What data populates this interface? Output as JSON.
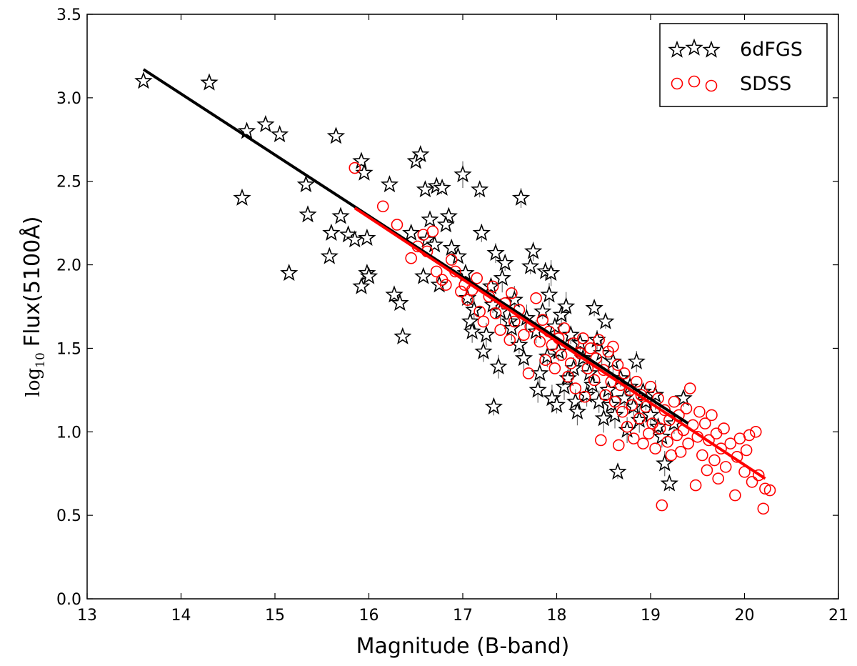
{
  "chart_data": {
    "type": "scatter",
    "title": "",
    "xlabel": "Magnitude (B-band)",
    "ylabel": "Flux(5100Å)",
    "ylabel_prefix": "log",
    "ylabel_subscript": "10",
    "xlim": [
      13,
      21
    ],
    "ylim": [
      0.0,
      3.5
    ],
    "xticks": [
      13,
      14,
      15,
      16,
      17,
      18,
      19,
      20,
      21
    ],
    "xtick_labels": [
      "13",
      "14",
      "15",
      "16",
      "17",
      "18",
      "19",
      "20",
      "21"
    ],
    "yticks": [
      0.0,
      0.5,
      1.0,
      1.5,
      2.0,
      2.5,
      3.0,
      3.5
    ],
    "ytick_labels": [
      "0.0",
      "0.5",
      "1.0",
      "1.5",
      "2.0",
      "2.5",
      "3.0",
      "3.5"
    ],
    "grid": false,
    "legend_position": "top-right",
    "series": [
      {
        "name": "6dFGS",
        "marker": "star",
        "color": "#000000",
        "points": [
          [
            13.6,
            3.1
          ],
          [
            14.3,
            3.09
          ],
          [
            14.7,
            2.8
          ],
          [
            14.9,
            2.84
          ],
          [
            15.05,
            2.78
          ],
          [
            14.65,
            2.4
          ],
          [
            15.15,
            1.95
          ],
          [
            15.35,
            2.3
          ],
          [
            15.33,
            2.48
          ],
          [
            15.58,
            2.05
          ],
          [
            15.6,
            2.19
          ],
          [
            15.65,
            2.77
          ],
          [
            15.7,
            2.29
          ],
          [
            15.78,
            2.18
          ],
          [
            15.85,
            2.15
          ],
          [
            15.92,
            2.62
          ],
          [
            15.92,
            1.87
          ],
          [
            15.95,
            2.55
          ],
          [
            15.98,
            1.95
          ],
          [
            15.98,
            2.16
          ],
          [
            16.0,
            1.93
          ],
          [
            16.22,
            2.48
          ],
          [
            16.27,
            1.82
          ],
          [
            16.33,
            1.77
          ],
          [
            16.36,
            1.57
          ],
          [
            16.45,
            2.19
          ],
          [
            16.5,
            2.62
          ],
          [
            16.55,
            2.66
          ],
          [
            16.6,
            2.45
          ],
          [
            16.62,
            2.15
          ],
          [
            16.58,
            1.93
          ],
          [
            16.65,
            2.27
          ],
          [
            16.72,
            2.47
          ],
          [
            16.78,
            2.46
          ],
          [
            16.7,
            2.12
          ],
          [
            16.75,
            1.88
          ],
          [
            16.85,
            2.29
          ],
          [
            16.88,
            2.1
          ],
          [
            16.82,
            2.24
          ],
          [
            16.95,
            2.05
          ],
          [
            17.0,
            2.54
          ],
          [
            17.03,
            1.95
          ],
          [
            17.05,
            1.8
          ],
          [
            17.08,
            1.66
          ],
          [
            17.1,
            1.6
          ],
          [
            17.12,
            1.73
          ],
          [
            17.18,
            2.45
          ],
          [
            17.2,
            2.19
          ],
          [
            17.22,
            1.48
          ],
          [
            17.25,
            1.58
          ],
          [
            17.3,
            1.87
          ],
          [
            17.32,
            1.76
          ],
          [
            17.33,
            1.15
          ],
          [
            17.35,
            2.07
          ],
          [
            17.38,
            1.39
          ],
          [
            17.4,
            1.72
          ],
          [
            17.42,
            1.92
          ],
          [
            17.45,
            2.01
          ],
          [
            17.5,
            1.66
          ],
          [
            17.52,
            1.62
          ],
          [
            17.55,
            1.79
          ],
          [
            17.6,
            1.52
          ],
          [
            17.62,
            2.4
          ],
          [
            17.65,
            1.44
          ],
          [
            17.68,
            1.68
          ],
          [
            17.72,
            1.99
          ],
          [
            17.75,
            2.08
          ],
          [
            17.78,
            1.6
          ],
          [
            17.8,
            1.25
          ],
          [
            17.82,
            1.35
          ],
          [
            17.85,
            1.72
          ],
          [
            17.88,
            1.96
          ],
          [
            17.9,
            1.45
          ],
          [
            17.92,
            1.82
          ],
          [
            17.94,
            1.95
          ],
          [
            17.95,
            1.2
          ],
          [
            17.98,
            1.63
          ],
          [
            18.0,
            1.16
          ],
          [
            18.02,
            1.48
          ],
          [
            18.05,
            1.7
          ],
          [
            18.08,
            1.27
          ],
          [
            18.1,
            1.75
          ],
          [
            18.12,
            1.32
          ],
          [
            18.15,
            1.58
          ],
          [
            18.18,
            1.38
          ],
          [
            18.2,
            1.18
          ],
          [
            18.22,
            1.12
          ],
          [
            18.25,
            1.53
          ],
          [
            18.28,
            1.44
          ],
          [
            18.32,
            1.22
          ],
          [
            18.35,
            1.35
          ],
          [
            18.38,
            1.28
          ],
          [
            18.4,
            1.74
          ],
          [
            18.43,
            1.55
          ],
          [
            18.45,
            1.18
          ],
          [
            18.48,
            1.47
          ],
          [
            18.5,
            1.08
          ],
          [
            18.52,
            1.66
          ],
          [
            18.55,
            1.25
          ],
          [
            18.58,
            1.16
          ],
          [
            18.6,
            1.42
          ],
          [
            18.62,
            1.1
          ],
          [
            18.65,
            0.76
          ],
          [
            18.68,
            1.32
          ],
          [
            18.72,
            1.2
          ],
          [
            18.75,
            1.01
          ],
          [
            18.78,
            1.27
          ],
          [
            18.82,
            1.15
          ],
          [
            18.85,
            1.42
          ],
          [
            18.88,
            1.07
          ],
          [
            18.92,
            1.24
          ],
          [
            18.95,
            1.18
          ],
          [
            19.0,
            1.1
          ],
          [
            19.05,
            1.22
          ],
          [
            19.08,
            1.03
          ],
          [
            19.12,
            0.97
          ],
          [
            19.15,
            0.81
          ],
          [
            19.2,
            0.69
          ],
          [
            19.25,
            1.05
          ],
          [
            19.35,
            1.2
          ]
        ]
      },
      {
        "name": "SDSS",
        "marker": "circle",
        "color": "#ff0000",
        "points": [
          [
            15.85,
            2.58
          ],
          [
            16.15,
            2.35
          ],
          [
            16.3,
            2.24
          ],
          [
            16.45,
            2.04
          ],
          [
            16.52,
            2.11
          ],
          [
            16.58,
            2.18
          ],
          [
            16.62,
            2.08
          ],
          [
            16.68,
            2.2
          ],
          [
            16.72,
            1.96
          ],
          [
            16.78,
            1.91
          ],
          [
            16.82,
            1.88
          ],
          [
            16.88,
            2.03
          ],
          [
            16.92,
            1.96
          ],
          [
            16.98,
            1.84
          ],
          [
            17.02,
            1.88
          ],
          [
            17.05,
            1.79
          ],
          [
            17.1,
            1.85
          ],
          [
            17.15,
            1.92
          ],
          [
            17.18,
            1.72
          ],
          [
            17.22,
            1.66
          ],
          [
            17.28,
            1.81
          ],
          [
            17.32,
            1.87
          ],
          [
            17.35,
            1.71
          ],
          [
            17.4,
            1.61
          ],
          [
            17.45,
            1.77
          ],
          [
            17.5,
            1.55
          ],
          [
            17.52,
            1.83
          ],
          [
            17.55,
            1.66
          ],
          [
            17.6,
            1.73
          ],
          [
            17.65,
            1.58
          ],
          [
            17.7,
            1.35
          ],
          [
            17.72,
            1.63
          ],
          [
            17.78,
            1.8
          ],
          [
            17.82,
            1.54
          ],
          [
            17.85,
            1.67
          ],
          [
            17.88,
            1.43
          ],
          [
            17.92,
            1.6
          ],
          [
            17.95,
            1.52
          ],
          [
            17.98,
            1.38
          ],
          [
            18.02,
            1.56
          ],
          [
            18.05,
            1.46
          ],
          [
            18.08,
            1.62
          ],
          [
            18.12,
            1.33
          ],
          [
            18.15,
            1.41
          ],
          [
            18.18,
            1.53
          ],
          [
            18.2,
            1.26
          ],
          [
            18.25,
            1.47
          ],
          [
            18.28,
            1.56
          ],
          [
            18.3,
            1.21
          ],
          [
            18.33,
            1.38
          ],
          [
            18.36,
            1.5
          ],
          [
            18.4,
            1.31
          ],
          [
            18.42,
            1.44
          ],
          [
            18.45,
            1.55
          ],
          [
            18.47,
            0.95
          ],
          [
            18.5,
            1.37
          ],
          [
            18.52,
            1.22
          ],
          [
            18.55,
            1.48
          ],
          [
            18.58,
            1.3
          ],
          [
            18.6,
            1.51
          ],
          [
            18.62,
            1.18
          ],
          [
            18.65,
            1.4
          ],
          [
            18.66,
            0.92
          ],
          [
            18.68,
            1.28
          ],
          [
            18.7,
            1.12
          ],
          [
            18.72,
            1.35
          ],
          [
            18.75,
            1.03
          ],
          [
            18.78,
            1.25
          ],
          [
            18.8,
            1.16
          ],
          [
            18.82,
            0.96
          ],
          [
            18.85,
            1.3
          ],
          [
            18.88,
            1.08
          ],
          [
            18.9,
            1.22
          ],
          [
            18.92,
            0.93
          ],
          [
            18.95,
            1.15
          ],
          [
            18.98,
            0.99
          ],
          [
            19.0,
            1.27
          ],
          [
            19.02,
            1.05
          ],
          [
            19.05,
            0.9
          ],
          [
            19.08,
            1.2
          ],
          [
            19.1,
            1.02
          ],
          [
            19.12,
            0.56
          ],
          [
            19.15,
            1.13
          ],
          [
            19.18,
            0.94
          ],
          [
            19.2,
            1.07
          ],
          [
            19.22,
            0.86
          ],
          [
            19.25,
            1.18
          ],
          [
            19.28,
            0.98
          ],
          [
            19.3,
            1.1
          ],
          [
            19.32,
            0.88
          ],
          [
            19.35,
            1.01
          ],
          [
            19.38,
            1.14
          ],
          [
            19.4,
            0.93
          ],
          [
            19.42,
            1.26
          ],
          [
            19.45,
            1.04
          ],
          [
            19.48,
            0.68
          ],
          [
            19.5,
            0.97
          ],
          [
            19.52,
            1.12
          ],
          [
            19.55,
            0.86
          ],
          [
            19.58,
            1.05
          ],
          [
            19.6,
            0.77
          ],
          [
            19.62,
            0.95
          ],
          [
            19.65,
            1.1
          ],
          [
            19.68,
            0.83
          ],
          [
            19.7,
            0.99
          ],
          [
            19.72,
            0.72
          ],
          [
            19.75,
            0.9
          ],
          [
            19.78,
            1.02
          ],
          [
            19.8,
            0.79
          ],
          [
            19.85,
            0.93
          ],
          [
            19.9,
            0.62
          ],
          [
            19.92,
            0.85
          ],
          [
            19.95,
            0.96
          ],
          [
            20.0,
            0.76
          ],
          [
            20.02,
            0.89
          ],
          [
            20.05,
            0.98
          ],
          [
            20.08,
            0.7
          ],
          [
            20.12,
            1.0
          ],
          [
            20.15,
            0.74
          ],
          [
            20.2,
            0.54
          ],
          [
            20.22,
            0.66
          ],
          [
            20.27,
            0.65
          ]
        ]
      }
    ],
    "fit_lines": [
      {
        "name": "6dFGS fit",
        "color": "#000000",
        "x": [
          13.6,
          19.4
        ],
        "y": [
          3.17,
          1.05
        ]
      },
      {
        "name": "SDSS fit",
        "color": "#ff0000",
        "x": [
          15.85,
          20.22
        ],
        "y": [
          2.34,
          0.72
        ]
      }
    ]
  }
}
